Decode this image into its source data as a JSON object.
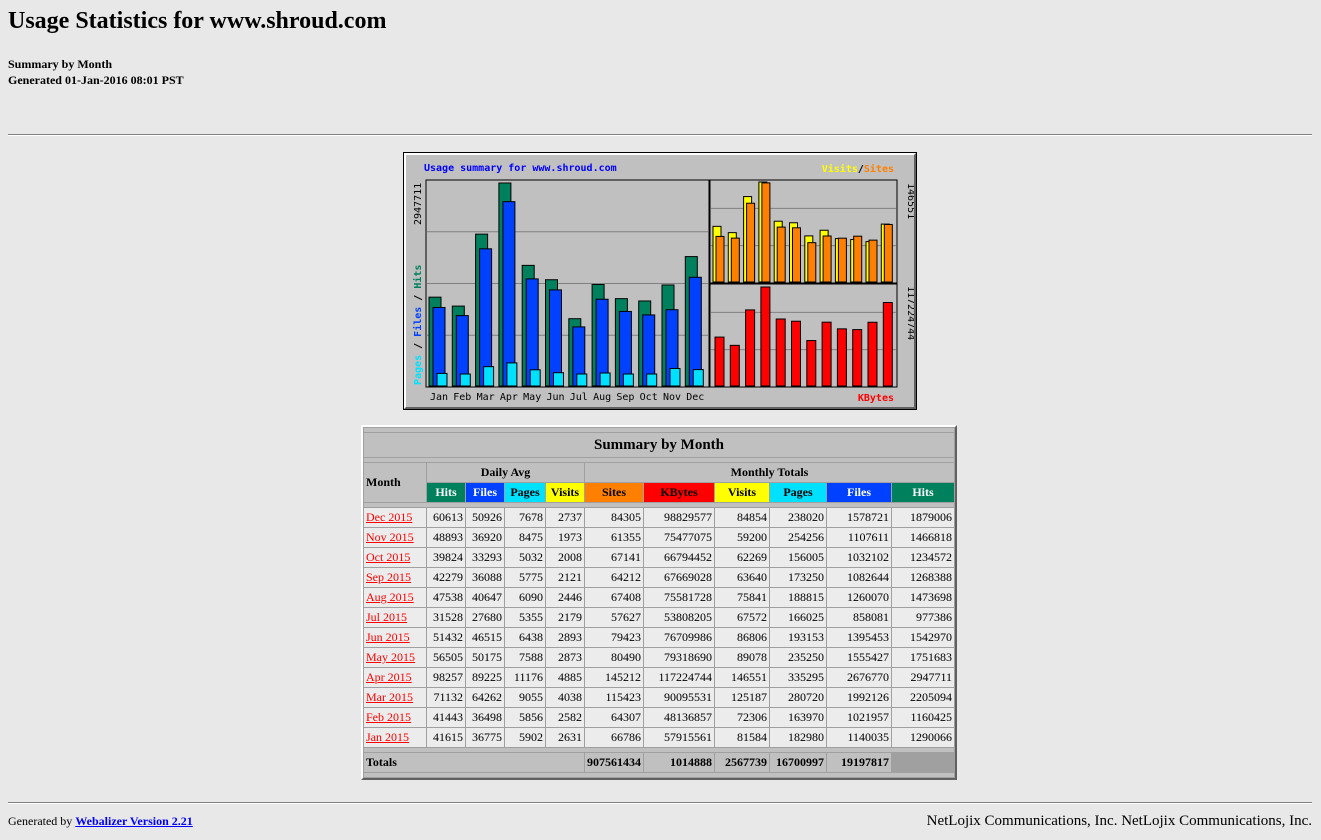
{
  "page": {
    "title": "Usage Statistics for www.shroud.com",
    "subtitle": "Summary by Month",
    "generated": "Generated 01-Jan-2016 08:01 PST"
  },
  "graph": {
    "title": "Usage summary for www.shroud.com",
    "legend_visits": "Visits",
    "legend_sep": "/",
    "legend_sites": "Sites",
    "left_axis_pages": "Pages",
    "left_axis_files": "Files",
    "left_axis_hits": "Hits",
    "left_max": "2947711",
    "right_top_max": "146551",
    "right_bottom_max": "117224744",
    "kbytes_label": "KBytes",
    "colors": {
      "hits": "#00805c",
      "files": "#0040ff",
      "pages": "#00e0ff",
      "visits": "#ffff00",
      "sites": "#ff8000",
      "kbytes": "#ff0000",
      "title": "#0000ff"
    }
  },
  "chart_data": {
    "type": "bar",
    "categories": [
      "Jan",
      "Feb",
      "Mar",
      "Apr",
      "May",
      "Jun",
      "Jul",
      "Aug",
      "Sep",
      "Oct",
      "Nov",
      "Dec"
    ],
    "series": [
      {
        "name": "Hits",
        "values": [
          1290066,
          1160425,
          2205094,
          2947711,
          1751683,
          1542970,
          977386,
          1473698,
          1268388,
          1234572,
          1466818,
          1879006
        ]
      },
      {
        "name": "Files",
        "values": [
          1140035,
          1021957,
          1992126,
          2676770,
          1555427,
          1395453,
          858081,
          1260070,
          1082644,
          1032102,
          1107611,
          1578721
        ]
      },
      {
        "name": "Pages",
        "values": [
          182980,
          163970,
          280720,
          335295,
          235250,
          193153,
          166025,
          188815,
          173250,
          156005,
          254256,
          238020
        ]
      },
      {
        "name": "Visits",
        "values": [
          81584,
          72306,
          125187,
          146551,
          89078,
          86806,
          67572,
          75841,
          63640,
          62269,
          59200,
          84854
        ]
      },
      {
        "name": "Sites",
        "values": [
          66786,
          64307,
          115423,
          145212,
          80490,
          79423,
          57627,
          67408,
          64212,
          67141,
          61355,
          84305
        ]
      },
      {
        "name": "KBytes",
        "values": [
          57915561,
          48136857,
          90095531,
          117224744,
          79318690,
          76709986,
          53808205,
          75581728,
          67669028,
          66794452,
          75477075,
          98829577
        ]
      }
    ]
  },
  "table": {
    "caption": "Summary by Month",
    "month_header": "Month",
    "daily_avg_header": "Daily Avg",
    "monthly_totals_header": "Monthly Totals",
    "daily_headers": [
      {
        "label": "Hits",
        "color": "#00805c"
      },
      {
        "label": "Files",
        "color": "#0040ff"
      },
      {
        "label": "Pages",
        "color": "#00e0ff"
      },
      {
        "label": "Visits",
        "color": "#ffff00"
      }
    ],
    "monthly_headers": [
      {
        "label": "Sites",
        "color": "#ff8000"
      },
      {
        "label": "KBytes",
        "color": "#ff0000"
      },
      {
        "label": "Visits",
        "color": "#ffff00"
      },
      {
        "label": "Pages",
        "color": "#00e0ff"
      },
      {
        "label": "Files",
        "color": "#0040ff"
      },
      {
        "label": "Hits",
        "color": "#00805c"
      }
    ],
    "rows": [
      {
        "month": "Dec 2015",
        "cells": [
          "60613",
          "50926",
          "7678",
          "2737",
          "84305",
          "98829577",
          "84854",
          "238020",
          "1578721",
          "1879006"
        ]
      },
      {
        "month": "Nov 2015",
        "cells": [
          "48893",
          "36920",
          "8475",
          "1973",
          "61355",
          "75477075",
          "59200",
          "254256",
          "1107611",
          "1466818"
        ]
      },
      {
        "month": "Oct 2015",
        "cells": [
          "39824",
          "33293",
          "5032",
          "2008",
          "67141",
          "66794452",
          "62269",
          "156005",
          "1032102",
          "1234572"
        ]
      },
      {
        "month": "Sep 2015",
        "cells": [
          "42279",
          "36088",
          "5775",
          "2121",
          "64212",
          "67669028",
          "63640",
          "173250",
          "1082644",
          "1268388"
        ]
      },
      {
        "month": "Aug 2015",
        "cells": [
          "47538",
          "40647",
          "6090",
          "2446",
          "67408",
          "75581728",
          "75841",
          "188815",
          "1260070",
          "1473698"
        ]
      },
      {
        "month": "Jul 2015",
        "cells": [
          "31528",
          "27680",
          "5355",
          "2179",
          "57627",
          "53808205",
          "67572",
          "166025",
          "858081",
          "977386"
        ]
      },
      {
        "month": "Jun 2015",
        "cells": [
          "51432",
          "46515",
          "6438",
          "2893",
          "79423",
          "76709986",
          "86806",
          "193153",
          "1395453",
          "1542970"
        ]
      },
      {
        "month": "May 2015",
        "cells": [
          "56505",
          "50175",
          "7588",
          "2873",
          "80490",
          "79318690",
          "89078",
          "235250",
          "1555427",
          "1751683"
        ]
      },
      {
        "month": "Apr 2015",
        "cells": [
          "98257",
          "89225",
          "11176",
          "4885",
          "145212",
          "117224744",
          "146551",
          "335295",
          "2676770",
          "2947711"
        ]
      },
      {
        "month": "Mar 2015",
        "cells": [
          "71132",
          "64262",
          "9055",
          "4038",
          "115423",
          "90095531",
          "125187",
          "280720",
          "1992126",
          "2205094"
        ]
      },
      {
        "month": "Feb 2015",
        "cells": [
          "41443",
          "36498",
          "5856",
          "2582",
          "64307",
          "48136857",
          "72306",
          "163970",
          "1021957",
          "1160425"
        ]
      },
      {
        "month": "Jan 2015",
        "cells": [
          "41615",
          "36775",
          "5902",
          "2631",
          "66786",
          "57915561",
          "81584",
          "182980",
          "1140035",
          "1290066"
        ]
      }
    ],
    "totals_label": "Totals",
    "totals": [
      "907561434",
      "1014888",
      "2567739",
      "16700997",
      "19197817"
    ]
  },
  "footer": {
    "generated_by": "Generated by",
    "webalizer_link": "Webalizer Version 2.21",
    "company": "NetLojix Communications, Inc. NetLojix Communications, Inc."
  }
}
